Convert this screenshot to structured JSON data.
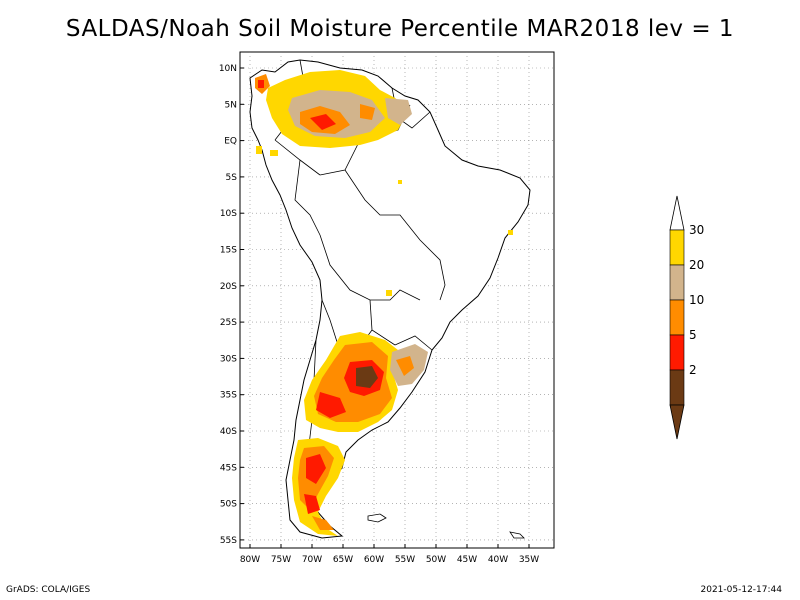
{
  "title": "SALDAS/Noah Soil Moisture Percentile MAR2018 lev = 1",
  "footer": {
    "left": "GrADS: COLA/IGES",
    "right": "2021-05-12-17:44"
  },
  "map": {
    "region": "South America",
    "lat_labels": [
      "10N",
      "5N",
      "EQ",
      "5S",
      "10S",
      "15S",
      "20S",
      "25S",
      "30S",
      "35S",
      "40S",
      "45S",
      "50S",
      "55S"
    ],
    "lon_labels": [
      "80W",
      "75W",
      "70W",
      "65W",
      "60W",
      "55W",
      "50W",
      "45W",
      "40W",
      "35W"
    ],
    "colors": {
      "p2": "#6b3a14",
      "p5": "#ff1a00",
      "p10": "#ff8c00",
      "p20": "#d2b48c",
      "p30": "#ffd700",
      "land_outline": "#000000",
      "grid": "#888888"
    }
  },
  "legend": {
    "ticks": [
      "30",
      "20",
      "10",
      "5",
      "2"
    ],
    "colors": [
      "#ffd700",
      "#d2b48c",
      "#ff8c00",
      "#ff1a00",
      "#6b3a14"
    ],
    "top_arrow_color": "#ffffff",
    "bottom_arrow_color": "#6b3a14"
  }
}
